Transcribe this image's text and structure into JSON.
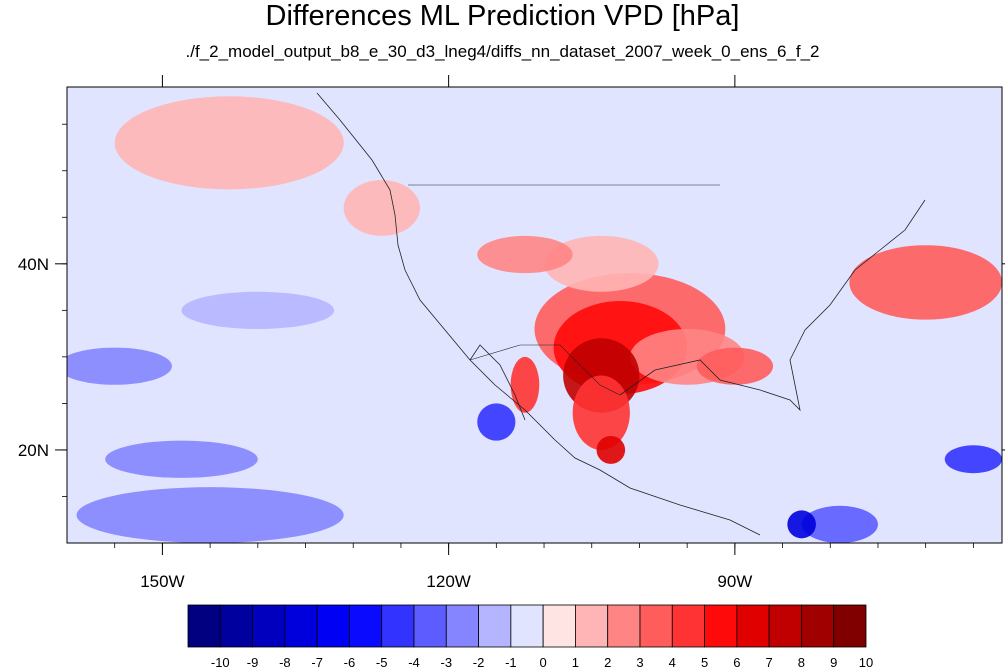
{
  "chart_data": {
    "type": "heatmap",
    "title": "Differences ML Prediction VPD [hPa]",
    "subtitle": "./f_2_model_output_b8_e_30_d3_lneg4/diffs_nn_dataset_2007_week_0_ens_6_f_2",
    "xlim": [
      -160,
      -62
    ],
    "ylim": [
      10,
      59
    ],
    "x_ticks": [
      {
        "value": -150,
        "label": "150W"
      },
      {
        "value": -120,
        "label": "120W"
      },
      {
        "value": -90,
        "label": "90W"
      }
    ],
    "y_ticks": [
      {
        "value": 20,
        "label": "20N"
      },
      {
        "value": 40,
        "label": "40N"
      }
    ],
    "colorbar": {
      "labels": [
        "-10",
        "-9",
        "-8",
        "-7",
        "-6",
        "-5",
        "-4",
        "-3",
        "-2",
        "-1",
        "0",
        "1",
        "2",
        "3",
        "4",
        "5",
        "6",
        "7",
        "8",
        "9",
        "10"
      ],
      "colors": [
        "#000080",
        "#00009f",
        "#0000be",
        "#0000dd",
        "#0000f5",
        "#0a0aff",
        "#3333ff",
        "#5c5cff",
        "#8585ff",
        "#b5b5ff",
        "#e0e4ff",
        "#ffe4e4",
        "#ffb5b5",
        "#ff8585",
        "#ff5c5c",
        "#ff3333",
        "#ff0a0a",
        "#e00000",
        "#c00000",
        "#a00000",
        "#800000"
      ]
    },
    "anomalies": [
      {
        "lon": -104,
        "lat": 28,
        "value": 7.5,
        "rx": 4,
        "ry": 4
      },
      {
        "lon": -102,
        "lat": 31,
        "value": 5.5,
        "rx": 7,
        "ry": 5
      },
      {
        "lon": -101,
        "lat": 33,
        "value": 3.5,
        "rx": 10,
        "ry": 6
      },
      {
        "lon": -104,
        "lat": 24,
        "value": 4.5,
        "rx": 3,
        "ry": 4
      },
      {
        "lon": -103,
        "lat": 20,
        "value": 6.5,
        "rx": 1.5,
        "ry": 1.5
      },
      {
        "lon": -112,
        "lat": 27,
        "value": 4.5,
        "rx": 1.5,
        "ry": 3
      },
      {
        "lon": -90,
        "lat": 29,
        "value": 3.5,
        "rx": 4,
        "ry": 2
      },
      {
        "lon": -95,
        "lat": 30,
        "value": 2.5,
        "rx": 6,
        "ry": 3
      },
      {
        "lon": -112,
        "lat": 41,
        "value": 3,
        "rx": 5,
        "ry": 2
      },
      {
        "lon": -104,
        "lat": 40,
        "value": 2,
        "rx": 6,
        "ry": 3
      },
      {
        "lon": -70,
        "lat": 38,
        "value": 3.5,
        "rx": 8,
        "ry": 4
      },
      {
        "lon": -143,
        "lat": 53,
        "value": 2,
        "rx": 12,
        "ry": 5
      },
      {
        "lon": -127,
        "lat": 46,
        "value": 1.5,
        "rx": 4,
        "ry": 3
      },
      {
        "lon": -115,
        "lat": 23,
        "value": -4.5,
        "rx": 2,
        "ry": 2
      },
      {
        "lon": -83,
        "lat": 12,
        "value": -7,
        "rx": 1.5,
        "ry": 1.5
      },
      {
        "lon": -79,
        "lat": 12,
        "value": -3.5,
        "rx": 4,
        "ry": 2
      },
      {
        "lon": -65,
        "lat": 19,
        "value": -4.5,
        "rx": 3,
        "ry": 1.5
      },
      {
        "lon": -148,
        "lat": 19,
        "value": -2.5,
        "rx": 8,
        "ry": 2
      },
      {
        "lon": -145,
        "lat": 13,
        "value": -2,
        "rx": 14,
        "ry": 3
      },
      {
        "lon": -155,
        "lat": 29,
        "value": -2,
        "rx": 6,
        "ry": 2
      },
      {
        "lon": -140,
        "lat": 35,
        "value": -1.5,
        "rx": 8,
        "ry": 2
      }
    ]
  }
}
